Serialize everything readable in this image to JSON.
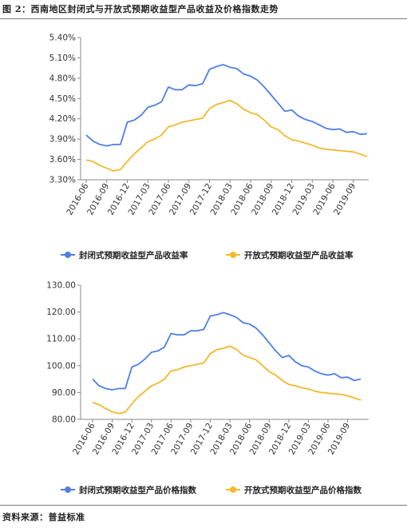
{
  "figure": {
    "title": "图 2：西南地区封闭式与开放式预期收益型产品收益及价格指数走势",
    "source": "资料来源：普益标准"
  },
  "colors": {
    "series1": "#4e7fe6",
    "series2": "#f3b82b",
    "axis": "#888888",
    "grid": "#d8d8d8"
  },
  "chart_data": [
    {
      "type": "line",
      "title": "",
      "xlabel": "",
      "ylabel": "",
      "ylim": [
        3.3,
        5.4
      ],
      "yticks": [
        "3.30%",
        "3.60%",
        "3.90%",
        "4.20%",
        "4.50%",
        "4.80%",
        "5.10%",
        "5.40%"
      ],
      "ytick_values": [
        3.3,
        3.6,
        3.9,
        4.2,
        4.5,
        4.8,
        5.1,
        5.4
      ],
      "grid": false,
      "legend_position": "bottom-center",
      "x": [
        "2016-06",
        "2016-07",
        "2016-08",
        "2016-09",
        "2016-10",
        "2016-11",
        "2016-12",
        "2017-01",
        "2017-02",
        "2017-03",
        "2017-04",
        "2017-05",
        "2017-06",
        "2017-07",
        "2017-08",
        "2017-09",
        "2017-10",
        "2017-11",
        "2017-12",
        "2018-01",
        "2018-02",
        "2018-03",
        "2018-04",
        "2018-05",
        "2018-06",
        "2018-07",
        "2018-08",
        "2018-09",
        "2018-10",
        "2018-11",
        "2018-12",
        "2019-01",
        "2019-02",
        "2019-03",
        "2019-04",
        "2019-05",
        "2019-06",
        "2019-07",
        "2019-08",
        "2019-09",
        "2019-10",
        "2019-11"
      ],
      "xtick_labels": [
        "2016-06",
        "2016-09",
        "2016-12",
        "2017-03",
        "2017-06",
        "2017-09",
        "2017-12",
        "2018-03",
        "2018-06",
        "2018-09",
        "2018-12",
        "2019-03",
        "2019-06",
        "2019-09"
      ],
      "series": [
        {
          "name": "封闭式预期收益型产品收益率",
          "values": [
            3.96,
            3.87,
            3.82,
            3.8,
            3.82,
            3.82,
            4.15,
            4.18,
            4.25,
            4.37,
            4.4,
            4.45,
            4.67,
            4.63,
            4.63,
            4.7,
            4.69,
            4.72,
            4.93,
            4.97,
            5.0,
            4.96,
            4.94,
            4.86,
            4.83,
            4.77,
            4.67,
            4.55,
            4.43,
            4.31,
            4.33,
            4.24,
            4.19,
            4.16,
            4.11,
            4.06,
            4.04,
            4.05,
            4.0,
            4.01,
            3.97,
            3.98
          ]
        },
        {
          "name": "开放式预期收益型产品收益率",
          "values": [
            3.59,
            3.57,
            3.51,
            3.47,
            3.43,
            3.45,
            3.57,
            3.68,
            3.77,
            3.86,
            3.9,
            3.96,
            4.08,
            4.11,
            4.15,
            4.17,
            4.19,
            4.21,
            4.35,
            4.41,
            4.44,
            4.47,
            4.42,
            4.34,
            4.29,
            4.26,
            4.18,
            4.08,
            4.04,
            3.95,
            3.89,
            3.87,
            3.84,
            3.81,
            3.77,
            3.75,
            3.74,
            3.73,
            3.72,
            3.71,
            3.68,
            3.64
          ]
        }
      ]
    },
    {
      "type": "line",
      "title": "",
      "xlabel": "",
      "ylabel": "",
      "ylim": [
        80.0,
        130.0
      ],
      "yticks": [
        "80.00",
        "90.00",
        "100.00",
        "110.00",
        "120.00",
        "130.00"
      ],
      "ytick_values": [
        80,
        90,
        100,
        110,
        120,
        130
      ],
      "grid": false,
      "legend_position": "bottom-center",
      "x": [
        "2016-06",
        "2016-07",
        "2016-08",
        "2016-09",
        "2016-10",
        "2016-11",
        "2016-12",
        "2017-01",
        "2017-02",
        "2017-03",
        "2017-04",
        "2017-05",
        "2017-06",
        "2017-07",
        "2017-08",
        "2017-09",
        "2017-10",
        "2017-11",
        "2017-12",
        "2018-01",
        "2018-02",
        "2018-03",
        "2018-04",
        "2018-05",
        "2018-06",
        "2018-07",
        "2018-08",
        "2018-09",
        "2018-10",
        "2018-11",
        "2018-12",
        "2019-01",
        "2019-02",
        "2019-03",
        "2019-04",
        "2019-05",
        "2019-06",
        "2019-07",
        "2019-08",
        "2019-09",
        "2019-10",
        "2019-11"
      ],
      "xtick_labels": [
        "2016-06",
        "2016-09",
        "2016-12",
        "2017-03",
        "2017-06",
        "2017-09",
        "2017-12",
        "2018-03",
        "2018-06",
        "2018-09",
        "2018-12",
        "2019-03",
        "2019-06",
        "2019-09"
      ],
      "series": [
        {
          "name": "封闭式预期收益型产品价格指数",
          "values": [
            95.0,
            92.5,
            91.5,
            91.0,
            91.5,
            91.5,
            99.5,
            100.5,
            102.5,
            105.0,
            105.5,
            107.0,
            112.0,
            111.5,
            111.5,
            113.0,
            113.0,
            113.5,
            118.5,
            119.0,
            119.8,
            119.0,
            118.0,
            116.0,
            115.5,
            114.0,
            111.5,
            108.5,
            105.5,
            103.0,
            103.8,
            101.5,
            100.0,
            99.5,
            98.0,
            97.0,
            96.5,
            97.0,
            95.5,
            95.7,
            94.5,
            95.0
          ]
        },
        {
          "name": "开放式预期收益型产品价格指数",
          "values": [
            86.3,
            85.5,
            84.0,
            82.8,
            82.2,
            82.7,
            85.8,
            88.5,
            90.5,
            92.5,
            93.5,
            95.0,
            98.0,
            98.5,
            99.5,
            100.0,
            100.5,
            101.0,
            104.5,
            106.0,
            106.5,
            107.3,
            106.0,
            104.0,
            103.0,
            102.2,
            100.0,
            97.8,
            96.5,
            94.5,
            93.0,
            92.5,
            91.8,
            91.3,
            90.5,
            90.0,
            89.8,
            89.5,
            89.3,
            88.8,
            88.0,
            87.2
          ]
        }
      ]
    }
  ]
}
